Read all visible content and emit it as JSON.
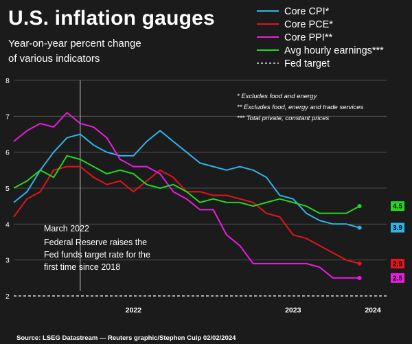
{
  "chart_data": {
    "type": "line",
    "title": "U.S. inflation gauges",
    "subtitle_lines": [
      "Year-on-year percent change",
      "of various indicators"
    ],
    "notes": [
      "* Excludes food and energy",
      "** Excludes food, energy and trade services",
      "*** Total private, constant prices"
    ],
    "annotation": {
      "x": "2022-03",
      "lines": [
        "March 2022",
        "Federal Reserve raises the",
        "Fed funds target rate for the",
        "first time since 2018"
      ]
    },
    "source": "Source: LSEG Datastream — Reuters graphic/Stephen Culp 02/02/2024",
    "ylim": [
      2,
      8
    ],
    "yticks": [
      2,
      3,
      4,
      5,
      6,
      7,
      8
    ],
    "xlim": [
      "2021-10",
      "2024-01"
    ],
    "xticks": [
      {
        "label": "2022",
        "date": "2022-07"
      },
      {
        "label": "2023",
        "date": "2023-07"
      },
      {
        "label": "2024",
        "date": "2024-01"
      }
    ],
    "fed_target": 2,
    "fed_target_label": "Fed target",
    "series": [
      {
        "name": "Core CPI*",
        "color": "#2fb4e8",
        "end_label": "3.9",
        "dates": [
          "2021-10",
          "2021-11",
          "2021-12",
          "2022-01",
          "2022-02",
          "2022-03",
          "2022-04",
          "2022-05",
          "2022-06",
          "2022-07",
          "2022-08",
          "2022-09",
          "2022-10",
          "2022-11",
          "2022-12",
          "2023-01",
          "2023-02",
          "2023-03",
          "2023-04",
          "2023-05",
          "2023-06",
          "2023-07",
          "2023-08",
          "2023-09",
          "2023-10",
          "2023-11",
          "2023-12"
        ],
        "values": [
          4.6,
          4.9,
          5.5,
          6.0,
          6.4,
          6.5,
          6.2,
          6.0,
          5.9,
          5.9,
          6.3,
          6.6,
          6.3,
          6.0,
          5.7,
          5.6,
          5.5,
          5.6,
          5.5,
          5.3,
          4.8,
          4.7,
          4.3,
          4.1,
          4.0,
          4.0,
          3.9
        ]
      },
      {
        "name": "Core PCE*",
        "color": "#e3141b",
        "end_label": "2.9",
        "dates": [
          "2021-10",
          "2021-11",
          "2021-12",
          "2022-01",
          "2022-02",
          "2022-03",
          "2022-04",
          "2022-05",
          "2022-06",
          "2022-07",
          "2022-08",
          "2022-09",
          "2022-10",
          "2022-11",
          "2022-12",
          "2023-01",
          "2023-02",
          "2023-03",
          "2023-04",
          "2023-05",
          "2023-06",
          "2023-07",
          "2023-08",
          "2023-09",
          "2023-10",
          "2023-11",
          "2023-12"
        ],
        "values": [
          4.2,
          4.7,
          4.9,
          5.5,
          5.6,
          5.6,
          5.3,
          5.1,
          5.2,
          4.9,
          5.2,
          5.5,
          5.3,
          4.9,
          4.9,
          4.8,
          4.8,
          4.7,
          4.6,
          4.3,
          4.2,
          3.7,
          3.6,
          3.4,
          3.2,
          3.0,
          2.9
        ]
      },
      {
        "name": "Core PPI**",
        "color": "#e81ee0",
        "end_label": "2.5",
        "dates": [
          "2021-10",
          "2021-11",
          "2021-12",
          "2022-01",
          "2022-02",
          "2022-03",
          "2022-04",
          "2022-05",
          "2022-06",
          "2022-07",
          "2022-08",
          "2022-09",
          "2022-10",
          "2022-11",
          "2022-12",
          "2023-01",
          "2023-02",
          "2023-03",
          "2023-04",
          "2023-05",
          "2023-06",
          "2023-07",
          "2023-08",
          "2023-09",
          "2023-10",
          "2023-11",
          "2023-12"
        ],
        "values": [
          6.3,
          6.6,
          6.8,
          6.7,
          7.1,
          6.8,
          6.7,
          6.4,
          5.8,
          5.6,
          5.6,
          5.4,
          4.9,
          4.7,
          4.4,
          4.4,
          3.7,
          3.4,
          2.9,
          2.9,
          2.9,
          2.9,
          2.9,
          2.8,
          2.5,
          2.5,
          2.5
        ]
      },
      {
        "name": "Avg hourly earnings***",
        "color": "#25d820",
        "end_label": "4.5",
        "dates": [
          "2021-10",
          "2021-11",
          "2021-12",
          "2022-01",
          "2022-02",
          "2022-03",
          "2022-04",
          "2022-05",
          "2022-06",
          "2022-07",
          "2022-08",
          "2022-09",
          "2022-10",
          "2022-11",
          "2022-12",
          "2023-01",
          "2023-02",
          "2023-03",
          "2023-04",
          "2023-05",
          "2023-06",
          "2023-07",
          "2023-08",
          "2023-09",
          "2023-10",
          "2023-11",
          "2023-12"
        ],
        "values": [
          5.0,
          5.2,
          5.5,
          5.3,
          5.9,
          5.8,
          5.6,
          5.4,
          5.5,
          5.4,
          5.1,
          5.0,
          5.1,
          4.9,
          4.6,
          4.7,
          4.6,
          4.6,
          4.5,
          4.6,
          4.7,
          4.6,
          4.5,
          4.3,
          4.3,
          4.3,
          4.5
        ]
      }
    ]
  }
}
